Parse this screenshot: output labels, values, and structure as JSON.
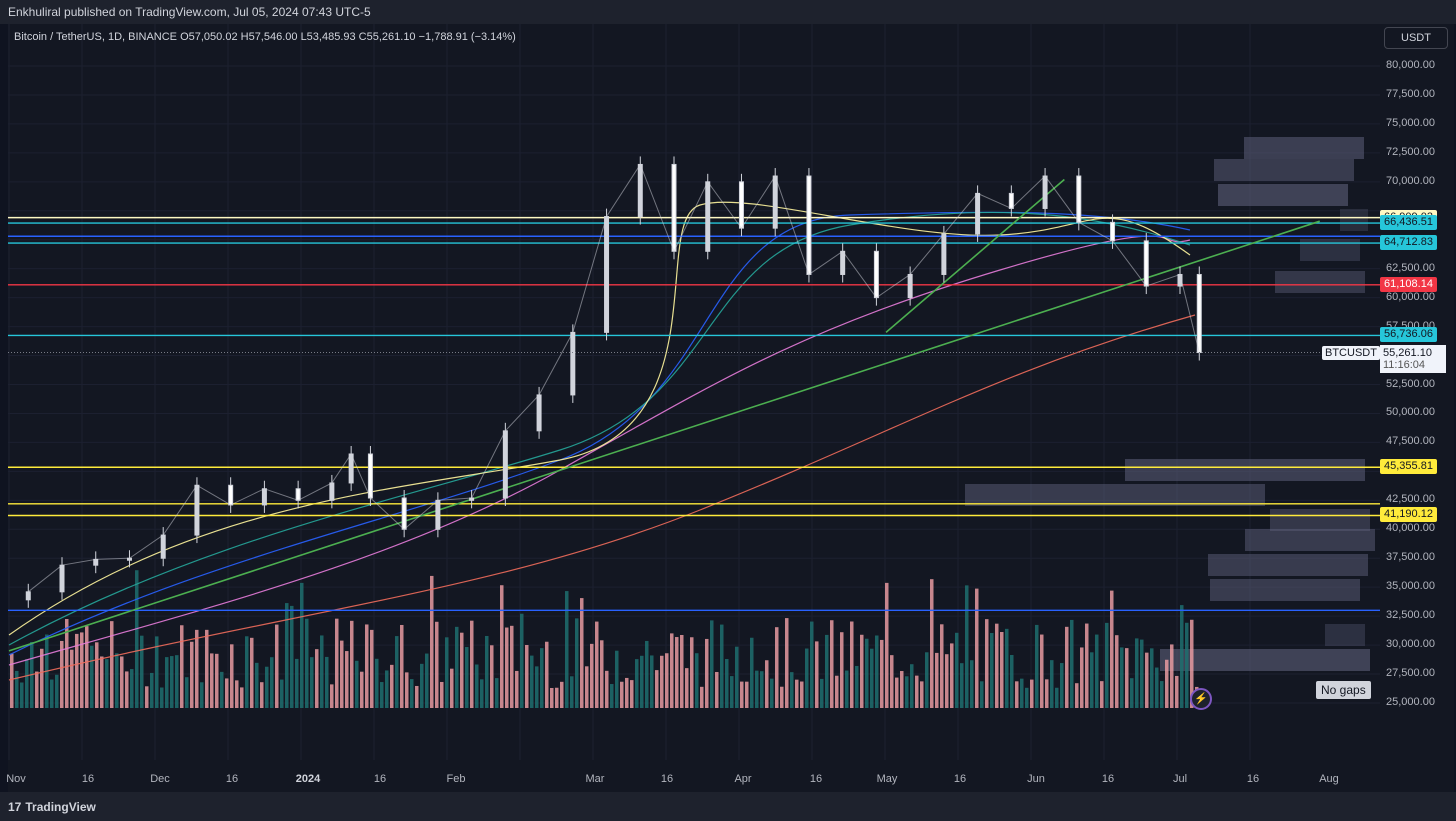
{
  "header": {
    "published": "Enkhuliral published on TradingView.com, Jul 05, 2024 07:43 UTC-5"
  },
  "legend": {
    "text": "Bitcoin / TetherUS, 1D, BINANCE  O57,050.02  H57,546.00  L53,485.93  C55,261.10  −1,788.91 (−3.14%)"
  },
  "currency_button": "USDT",
  "no_gaps": "No gaps",
  "footer": {
    "brand": "TradingView",
    "brand_mark": "17"
  },
  "symbol_label": "BTCUSDT",
  "last_price": {
    "price": "55,261.10",
    "countdown": "11:16:04"
  },
  "price_axis": [
    "80,000.00",
    "77,500.00",
    "75,000.00",
    "72,500.00",
    "70,000.00",
    "62,500.00",
    "60,000.00",
    "57,500.00",
    "52,500.00",
    "50,000.00",
    "47,500.00",
    "42,500.00",
    "40,000.00",
    "37,500.00",
    "35,000.00",
    "32,500.00",
    "30,000.00",
    "27,500.00",
    "25,000.00"
  ],
  "time_axis": [
    {
      "label": "Nov",
      "bold": false
    },
    {
      "label": "16",
      "bold": false
    },
    {
      "label": "Dec",
      "bold": false
    },
    {
      "label": "16",
      "bold": false
    },
    {
      "label": "2024",
      "bold": true
    },
    {
      "label": "16",
      "bold": false
    },
    {
      "label": "Feb",
      "bold": false
    },
    {
      "label": "Mar",
      "bold": false
    },
    {
      "label": "16",
      "bold": false
    },
    {
      "label": "Apr",
      "bold": false
    },
    {
      "label": "16",
      "bold": false
    },
    {
      "label": "May",
      "bold": false
    },
    {
      "label": "16",
      "bold": false
    },
    {
      "label": "Jun",
      "bold": false
    },
    {
      "label": "16",
      "bold": false
    },
    {
      "label": "Jul",
      "bold": false
    },
    {
      "label": "16",
      "bold": false
    },
    {
      "label": "Aug",
      "bold": false
    }
  ],
  "level_tags": [
    {
      "value": "66,909.03",
      "price": 66909.03,
      "bg": "#fff9c4",
      "fg": "#131722"
    },
    {
      "value": "66,436.51",
      "price": 66436.51,
      "bg": "#26c6da",
      "fg": "#131722"
    },
    {
      "value": "64,712.83",
      "price": 64712.83,
      "bg": "#26c6da",
      "fg": "#131722"
    },
    {
      "value": "61,108.14",
      "price": 61108.14,
      "bg": "#f23645",
      "fg": "#ffffff"
    },
    {
      "value": "56,736.06",
      "price": 56736.06,
      "bg": "#26c6da",
      "fg": "#131722"
    },
    {
      "value": "45,355.81",
      "price": 45355.81,
      "bg": "#ffeb3b",
      "fg": "#131722"
    },
    {
      "value": "41,190.12",
      "price": 41190.12,
      "bg": "#ffeb3b",
      "fg": "#131722"
    }
  ],
  "chart_data": {
    "type": "candlestick",
    "title": "Bitcoin / TetherUS, 1D, BINANCE",
    "last": {
      "open": 57050.02,
      "high": 57546.0,
      "low": 53485.93,
      "close": 55261.1,
      "change": -1788.91,
      "change_pct": -3.14
    },
    "ylim": [
      25000,
      82500
    ],
    "grid": true,
    "horizontal_levels": [
      {
        "price": 66909.03,
        "color": "#fff9c4"
      },
      {
        "price": 66436.51,
        "color": "#26c6da"
      },
      {
        "price": 65300,
        "color": "#2962ff"
      },
      {
        "price": 64712.83,
        "color": "#26c6da"
      },
      {
        "price": 61108.14,
        "color": "#f23645"
      },
      {
        "price": 56736.06,
        "color": "#26c6da"
      },
      {
        "price": 45355.81,
        "color": "#ffeb3b"
      },
      {
        "price": 42200,
        "color": "#ffeb3b"
      },
      {
        "price": 41190.12,
        "color": "#ffeb3b"
      },
      {
        "price": 33000,
        "color": "#2962ff"
      }
    ],
    "trendlines": [
      {
        "from": [
          "2023-11-01",
          29500
        ],
        "to": [
          "2024-07-30",
          66600
        ],
        "color": "#4caf50"
      },
      {
        "from": [
          "2024-05-01",
          57000
        ],
        "to": [
          "2024-06-07",
          70200
        ],
        "color": "#4caf50"
      }
    ],
    "series": [
      {
        "kind": "ohlc",
        "points": [
          [
            "2023-11-05",
            34600
          ],
          [
            "2023-11-12",
            36900
          ],
          [
            "2023-11-19",
            37400
          ],
          [
            "2023-11-26",
            37500
          ],
          [
            "2023-12-03",
            39500
          ],
          [
            "2023-12-10",
            43800
          ],
          [
            "2023-12-17",
            42100
          ],
          [
            "2023-12-24",
            43500
          ],
          [
            "2023-12-31",
            42500
          ],
          [
            "2024-01-07",
            44000
          ],
          [
            "2024-01-11",
            46500
          ],
          [
            "2024-01-15",
            42700
          ],
          [
            "2024-01-22",
            40000
          ],
          [
            "2024-01-29",
            42500
          ],
          [
            "2024-02-05",
            42700
          ],
          [
            "2024-02-12",
            48500
          ],
          [
            "2024-02-19",
            51600
          ],
          [
            "2024-02-26",
            57000
          ],
          [
            "2024-03-04",
            67000
          ],
          [
            "2024-03-11",
            71500
          ],
          [
            "2024-03-18",
            64000
          ],
          [
            "2024-03-25",
            70000
          ],
          [
            "2024-04-01",
            66000
          ],
          [
            "2024-04-08",
            70500
          ],
          [
            "2024-04-15",
            62000
          ],
          [
            "2024-04-22",
            64000
          ],
          [
            "2024-04-29",
            60000
          ],
          [
            "2024-05-06",
            62000
          ],
          [
            "2024-05-13",
            65500
          ],
          [
            "2024-05-20",
            69000
          ],
          [
            "2024-05-27",
            67700
          ],
          [
            "2024-06-03",
            70500
          ],
          [
            "2024-06-10",
            66500
          ],
          [
            "2024-06-17",
            64900
          ],
          [
            "2024-06-24",
            61000
          ],
          [
            "2024-07-01",
            62000
          ],
          [
            "2024-07-05",
            55261
          ]
        ]
      }
    ]
  }
}
